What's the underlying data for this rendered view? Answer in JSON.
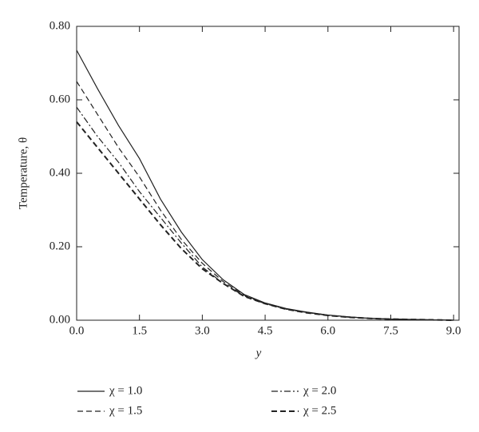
{
  "chart_data": {
    "type": "line",
    "x_label": "y",
    "y_label": "Temperature, θ",
    "x": [
      0,
      0.5,
      1,
      1.5,
      2,
      2.5,
      3,
      3.5,
      4,
      4.5,
      5,
      5.5,
      6,
      6.5,
      7,
      7.5,
      8,
      8.5,
      9
    ],
    "series": [
      {
        "name": "χ = 1.0",
        "color": "#222222",
        "dash": "solid",
        "width": 1.2,
        "values": [
          0.735,
          0.63,
          0.53,
          0.44,
          0.33,
          0.24,
          0.165,
          0.11,
          0.07,
          0.047,
          0.032,
          0.022,
          0.014,
          0.009,
          0.005,
          0.003,
          0.002,
          0.001,
          0.0
        ]
      },
      {
        "name": "χ = 1.5",
        "color": "#222222",
        "dash": "dashed",
        "width": 1.2,
        "values": [
          0.65,
          0.56,
          0.47,
          0.39,
          0.3,
          0.22,
          0.155,
          0.105,
          0.068,
          0.046,
          0.031,
          0.021,
          0.014,
          0.009,
          0.005,
          0.003,
          0.002,
          0.001,
          0.0
        ]
      },
      {
        "name": "χ = 2.0",
        "color": "#222222",
        "dash": "dashdot",
        "width": 1.2,
        "values": [
          0.58,
          0.5,
          0.43,
          0.35,
          0.28,
          0.21,
          0.145,
          0.1,
          0.066,
          0.045,
          0.03,
          0.021,
          0.013,
          0.008,
          0.005,
          0.003,
          0.002,
          0.001,
          0.0
        ]
      },
      {
        "name": "χ = 2.5",
        "color": "#222222",
        "dash": "bolddashed",
        "width": 2,
        "values": [
          0.54,
          0.47,
          0.4,
          0.33,
          0.26,
          0.195,
          0.14,
          0.1,
          0.065,
          0.045,
          0.03,
          0.02,
          0.013,
          0.008,
          0.005,
          0.003,
          0.002,
          0.001,
          0.0
        ]
      }
    ],
    "xlim": [
      0,
      9.13
    ],
    "ylim": [
      0,
      0.8
    ],
    "xticks": [
      {
        "value": 0,
        "label": "0.0"
      },
      {
        "value": 1.5,
        "label": "1.5"
      },
      {
        "value": 3,
        "label": "3.0"
      },
      {
        "value": 4.5,
        "label": "4.5"
      },
      {
        "value": 6,
        "label": "6.0"
      },
      {
        "value": 7.5,
        "label": "7.5"
      },
      {
        "value": 9,
        "label": "9.0"
      }
    ],
    "yticks": [
      {
        "value": 0,
        "label": "0.00"
      },
      {
        "value": 0.2,
        "label": "0.20"
      },
      {
        "value": 0.4,
        "label": "0.40"
      },
      {
        "value": 0.6,
        "label": "0.60"
      },
      {
        "value": 0.8,
        "label": "0.80"
      }
    ],
    "grid": false
  }
}
